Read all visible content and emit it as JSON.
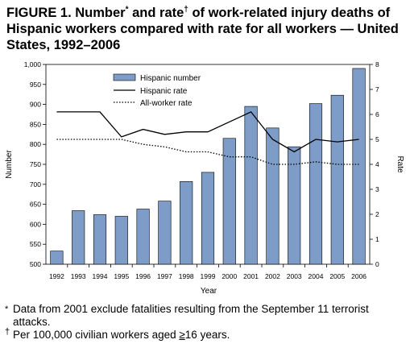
{
  "figure": {
    "title_part1": "FIGURE 1. Number",
    "title_mark1": "*",
    "title_part2": " and rate",
    "title_mark2": "†",
    "title_part3": " of work-related injury deaths of Hispanic workers compared with rate for all workers — United States, 1992–2006"
  },
  "chart_data": {
    "type": "bar",
    "x": [
      "1992",
      "1993",
      "1994",
      "1995",
      "1996",
      "1997",
      "1998",
      "1999",
      "2000",
      "2001",
      "2002",
      "2003",
      "2004",
      "2005",
      "2006"
    ],
    "xlabel": "Year",
    "ylabel_left": "Number",
    "ylabel_right": "Rate",
    "ylim_left": [
      500,
      1000
    ],
    "ylim_right": [
      0,
      8
    ],
    "yticks_left": [
      "500",
      "550",
      "600",
      "650",
      "700",
      "750",
      "800",
      "850",
      "900",
      "950",
      "1,000"
    ],
    "yticks_right": [
      "0",
      "1",
      "2",
      "3",
      "4",
      "5",
      "6",
      "7",
      "8"
    ],
    "grid": false,
    "legend_position": "top-center",
    "series": [
      {
        "name": "Hispanic number",
        "type": "bar",
        "axis": "left",
        "color": "#7d9cc7",
        "values": [
          533,
          634,
          624,
          620,
          638,
          658,
          707,
          730,
          815,
          895,
          841,
          794,
          902,
          923,
          990
        ]
      },
      {
        "name": "Hispanic rate",
        "type": "line",
        "axis": "right",
        "style": "solid",
        "color": "#000000",
        "values": [
          6.1,
          6.1,
          6.1,
          5.1,
          5.4,
          5.2,
          5.3,
          5.3,
          5.7,
          6.1,
          5.0,
          4.5,
          5.0,
          4.9,
          5.0
        ]
      },
      {
        "name": "All-worker rate",
        "type": "line",
        "axis": "right",
        "style": "dotted",
        "color": "#000000",
        "values": [
          5.0,
          5.0,
          5.0,
          5.0,
          4.8,
          4.7,
          4.5,
          4.5,
          4.3,
          4.3,
          4.0,
          4.0,
          4.1,
          4.0,
          4.0
        ]
      }
    ]
  },
  "footnotes": {
    "note1_mark": "*",
    "note1_text": "Data from 2001 exclude fatalities resulting from the September 11 terrorist attacks.",
    "note2_mark": "†",
    "note2_text_before": "Per 100,000 civilian workers aged ",
    "note2_ge": "≥",
    "note2_text_after": "16 years."
  }
}
